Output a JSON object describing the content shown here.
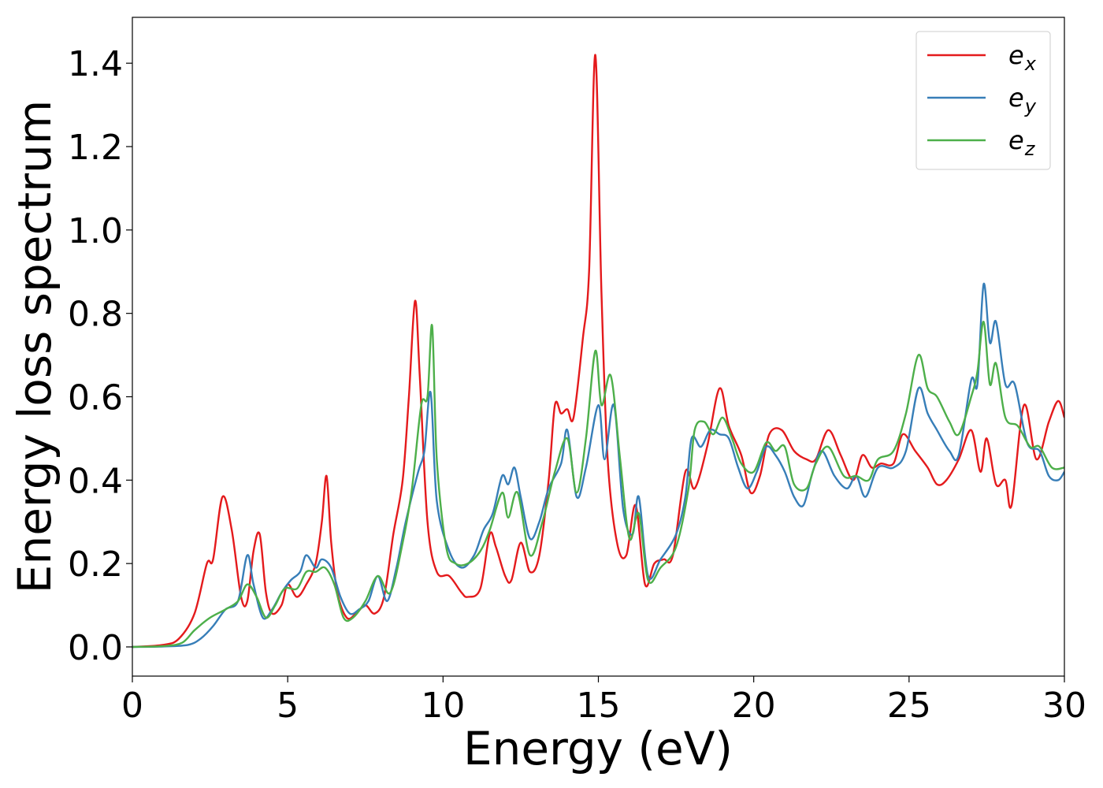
{
  "chart_data": {
    "type": "line",
    "xlabel": "Energy (eV)",
    "ylabel": "Energy loss spectrum",
    "xlim": [
      0,
      30
    ],
    "ylim": [
      -0.07,
      1.51
    ],
    "xticks": [
      "0",
      "5",
      "10",
      "15",
      "20",
      "25",
      "30"
    ],
    "yticks": [
      "0.0",
      "0.2",
      "0.4",
      "0.6",
      "0.8",
      "1.0",
      "1.2",
      "1.4"
    ],
    "grid": false,
    "legend_position": "top-right",
    "series": [
      {
        "name": "e",
        "subscript": "x",
        "color": "#e41a1c",
        "points": [
          [
            0,
            0
          ],
          [
            1,
            0.005
          ],
          [
            1.5,
            0.02
          ],
          [
            2,
            0.08
          ],
          [
            2.4,
            0.2
          ],
          [
            2.6,
            0.21
          ],
          [
            2.9,
            0.36
          ],
          [
            3.2,
            0.28
          ],
          [
            3.5,
            0.12
          ],
          [
            3.7,
            0.11
          ],
          [
            3.9,
            0.23
          ],
          [
            4.1,
            0.27
          ],
          [
            4.3,
            0.13
          ],
          [
            4.5,
            0.08
          ],
          [
            4.8,
            0.1
          ],
          [
            5.0,
            0.15
          ],
          [
            5.3,
            0.12
          ],
          [
            5.6,
            0.15
          ],
          [
            5.9,
            0.2
          ],
          [
            6.1,
            0.3
          ],
          [
            6.25,
            0.41
          ],
          [
            6.4,
            0.25
          ],
          [
            6.6,
            0.13
          ],
          [
            6.9,
            0.07
          ],
          [
            7.2,
            0.08
          ],
          [
            7.5,
            0.1
          ],
          [
            7.8,
            0.08
          ],
          [
            8.1,
            0.12
          ],
          [
            8.4,
            0.27
          ],
          [
            8.7,
            0.4
          ],
          [
            8.9,
            0.6
          ],
          [
            9.1,
            0.83
          ],
          [
            9.25,
            0.65
          ],
          [
            9.5,
            0.3
          ],
          [
            9.8,
            0.18
          ],
          [
            10.2,
            0.17
          ],
          [
            10.6,
            0.13
          ],
          [
            10.8,
            0.12
          ],
          [
            11.2,
            0.14
          ],
          [
            11.5,
            0.27
          ],
          [
            11.7,
            0.24
          ],
          [
            12.0,
            0.17
          ],
          [
            12.2,
            0.16
          ],
          [
            12.5,
            0.25
          ],
          [
            12.8,
            0.18
          ],
          [
            13.1,
            0.22
          ],
          [
            13.4,
            0.4
          ],
          [
            13.6,
            0.58
          ],
          [
            13.8,
            0.56
          ],
          [
            14.0,
            0.57
          ],
          [
            14.2,
            0.55
          ],
          [
            14.5,
            0.74
          ],
          [
            14.7,
            0.9
          ],
          [
            14.9,
            1.42
          ],
          [
            15.1,
            0.85
          ],
          [
            15.3,
            0.45
          ],
          [
            15.6,
            0.25
          ],
          [
            15.9,
            0.22
          ],
          [
            16.2,
            0.34
          ],
          [
            16.5,
            0.15
          ],
          [
            16.8,
            0.2
          ],
          [
            17.1,
            0.21
          ],
          [
            17.4,
            0.22
          ],
          [
            17.8,
            0.42
          ],
          [
            18.1,
            0.38
          ],
          [
            18.5,
            0.48
          ],
          [
            18.9,
            0.62
          ],
          [
            19.2,
            0.53
          ],
          [
            19.6,
            0.46
          ],
          [
            19.9,
            0.37
          ],
          [
            20.2,
            0.41
          ],
          [
            20.5,
            0.51
          ],
          [
            20.9,
            0.52
          ],
          [
            21.3,
            0.47
          ],
          [
            21.7,
            0.45
          ],
          [
            22.0,
            0.45
          ],
          [
            22.4,
            0.52
          ],
          [
            22.8,
            0.46
          ],
          [
            23.2,
            0.4
          ],
          [
            23.5,
            0.46
          ],
          [
            23.8,
            0.43
          ],
          [
            24.1,
            0.44
          ],
          [
            24.5,
            0.44
          ],
          [
            24.8,
            0.51
          ],
          [
            25.2,
            0.47
          ],
          [
            25.6,
            0.43
          ],
          [
            25.9,
            0.39
          ],
          [
            26.2,
            0.4
          ],
          [
            26.6,
            0.45
          ],
          [
            27.0,
            0.52
          ],
          [
            27.3,
            0.42
          ],
          [
            27.5,
            0.5
          ],
          [
            27.8,
            0.39
          ],
          [
            28.1,
            0.4
          ],
          [
            28.3,
            0.34
          ],
          [
            28.7,
            0.58
          ],
          [
            29.1,
            0.45
          ],
          [
            29.5,
            0.54
          ],
          [
            29.8,
            0.59
          ],
          [
            30.0,
            0.55
          ]
        ]
      },
      {
        "name": "e",
        "subscript": "y",
        "color": "#377eb8",
        "points": [
          [
            0,
            0
          ],
          [
            1,
            0.001
          ],
          [
            1.8,
            0.005
          ],
          [
            2.2,
            0.02
          ],
          [
            2.6,
            0.05
          ],
          [
            3.0,
            0.09
          ],
          [
            3.4,
            0.11
          ],
          [
            3.7,
            0.22
          ],
          [
            3.9,
            0.15
          ],
          [
            4.2,
            0.07
          ],
          [
            4.5,
            0.09
          ],
          [
            4.8,
            0.13
          ],
          [
            5.1,
            0.16
          ],
          [
            5.4,
            0.18
          ],
          [
            5.6,
            0.22
          ],
          [
            5.9,
            0.19
          ],
          [
            6.1,
            0.21
          ],
          [
            6.4,
            0.19
          ],
          [
            6.7,
            0.12
          ],
          [
            7.0,
            0.08
          ],
          [
            7.3,
            0.09
          ],
          [
            7.6,
            0.11
          ],
          [
            7.9,
            0.17
          ],
          [
            8.2,
            0.11
          ],
          [
            8.5,
            0.19
          ],
          [
            8.8,
            0.3
          ],
          [
            9.2,
            0.42
          ],
          [
            9.4,
            0.47
          ],
          [
            9.6,
            0.61
          ],
          [
            9.8,
            0.35
          ],
          [
            10.2,
            0.23
          ],
          [
            10.6,
            0.19
          ],
          [
            11.0,
            0.22
          ],
          [
            11.3,
            0.28
          ],
          [
            11.6,
            0.32
          ],
          [
            11.9,
            0.41
          ],
          [
            12.1,
            0.39
          ],
          [
            12.3,
            0.43
          ],
          [
            12.5,
            0.36
          ],
          [
            12.8,
            0.26
          ],
          [
            13.1,
            0.3
          ],
          [
            13.4,
            0.38
          ],
          [
            13.8,
            0.44
          ],
          [
            14.0,
            0.52
          ],
          [
            14.3,
            0.36
          ],
          [
            14.6,
            0.43
          ],
          [
            15.0,
            0.58
          ],
          [
            15.2,
            0.45
          ],
          [
            15.5,
            0.58
          ],
          [
            15.8,
            0.33
          ],
          [
            16.1,
            0.27
          ],
          [
            16.3,
            0.36
          ],
          [
            16.6,
            0.17
          ],
          [
            17.0,
            0.21
          ],
          [
            17.5,
            0.27
          ],
          [
            17.8,
            0.36
          ],
          [
            18.0,
            0.5
          ],
          [
            18.3,
            0.48
          ],
          [
            18.6,
            0.52
          ],
          [
            18.9,
            0.51
          ],
          [
            19.2,
            0.5
          ],
          [
            19.5,
            0.43
          ],
          [
            19.8,
            0.38
          ],
          [
            20.1,
            0.42
          ],
          [
            20.4,
            0.48
          ],
          [
            20.7,
            0.46
          ],
          [
            21.0,
            0.42
          ],
          [
            21.3,
            0.36
          ],
          [
            21.6,
            0.34
          ],
          [
            21.9,
            0.42
          ],
          [
            22.2,
            0.47
          ],
          [
            22.6,
            0.41
          ],
          [
            23.0,
            0.38
          ],
          [
            23.3,
            0.41
          ],
          [
            23.6,
            0.36
          ],
          [
            24.0,
            0.43
          ],
          [
            24.5,
            0.43
          ],
          [
            24.9,
            0.47
          ],
          [
            25.3,
            0.62
          ],
          [
            25.6,
            0.56
          ],
          [
            25.9,
            0.52
          ],
          [
            26.3,
            0.47
          ],
          [
            26.6,
            0.46
          ],
          [
            27.0,
            0.64
          ],
          [
            27.2,
            0.63
          ],
          [
            27.4,
            0.87
          ],
          [
            27.6,
            0.73
          ],
          [
            27.8,
            0.78
          ],
          [
            28.1,
            0.63
          ],
          [
            28.4,
            0.63
          ],
          [
            28.8,
            0.49
          ],
          [
            29.2,
            0.47
          ],
          [
            29.5,
            0.41
          ],
          [
            29.8,
            0.4
          ],
          [
            30.0,
            0.42
          ]
        ]
      },
      {
        "name": "e",
        "subscript": "z",
        "color": "#4daf4a",
        "points": [
          [
            0,
            0
          ],
          [
            1,
            0.002
          ],
          [
            1.6,
            0.01
          ],
          [
            2.0,
            0.04
          ],
          [
            2.5,
            0.07
          ],
          [
            3.0,
            0.09
          ],
          [
            3.4,
            0.11
          ],
          [
            3.7,
            0.15
          ],
          [
            4.0,
            0.12
          ],
          [
            4.3,
            0.07
          ],
          [
            4.6,
            0.1
          ],
          [
            4.9,
            0.14
          ],
          [
            5.3,
            0.14
          ],
          [
            5.6,
            0.18
          ],
          [
            5.9,
            0.18
          ],
          [
            6.2,
            0.19
          ],
          [
            6.5,
            0.15
          ],
          [
            6.8,
            0.07
          ],
          [
            7.1,
            0.07
          ],
          [
            7.5,
            0.11
          ],
          [
            7.9,
            0.17
          ],
          [
            8.3,
            0.13
          ],
          [
            8.7,
            0.25
          ],
          [
            9.0,
            0.38
          ],
          [
            9.3,
            0.58
          ],
          [
            9.5,
            0.6
          ],
          [
            9.65,
            0.77
          ],
          [
            9.8,
            0.45
          ],
          [
            10.1,
            0.24
          ],
          [
            10.4,
            0.2
          ],
          [
            10.8,
            0.2
          ],
          [
            11.2,
            0.23
          ],
          [
            11.5,
            0.28
          ],
          [
            11.9,
            0.37
          ],
          [
            12.1,
            0.31
          ],
          [
            12.4,
            0.37
          ],
          [
            12.8,
            0.22
          ],
          [
            13.2,
            0.3
          ],
          [
            13.6,
            0.42
          ],
          [
            14.0,
            0.5
          ],
          [
            14.3,
            0.37
          ],
          [
            14.6,
            0.5
          ],
          [
            14.9,
            0.71
          ],
          [
            15.1,
            0.58
          ],
          [
            15.4,
            0.65
          ],
          [
            15.7,
            0.45
          ],
          [
            16.0,
            0.26
          ],
          [
            16.3,
            0.32
          ],
          [
            16.6,
            0.16
          ],
          [
            17.0,
            0.19
          ],
          [
            17.5,
            0.24
          ],
          [
            17.9,
            0.38
          ],
          [
            18.1,
            0.52
          ],
          [
            18.4,
            0.54
          ],
          [
            18.7,
            0.51
          ],
          [
            19.0,
            0.55
          ],
          [
            19.3,
            0.5
          ],
          [
            19.6,
            0.44
          ],
          [
            20.0,
            0.42
          ],
          [
            20.4,
            0.49
          ],
          [
            20.7,
            0.47
          ],
          [
            21.0,
            0.48
          ],
          [
            21.3,
            0.39
          ],
          [
            21.7,
            0.38
          ],
          [
            22.0,
            0.44
          ],
          [
            22.4,
            0.48
          ],
          [
            22.9,
            0.41
          ],
          [
            23.3,
            0.41
          ],
          [
            23.7,
            0.4
          ],
          [
            24.0,
            0.45
          ],
          [
            24.5,
            0.47
          ],
          [
            24.9,
            0.56
          ],
          [
            25.3,
            0.7
          ],
          [
            25.6,
            0.62
          ],
          [
            25.9,
            0.6
          ],
          [
            26.3,
            0.54
          ],
          [
            26.6,
            0.51
          ],
          [
            27.0,
            0.6
          ],
          [
            27.2,
            0.66
          ],
          [
            27.4,
            0.78
          ],
          [
            27.6,
            0.63
          ],
          [
            27.8,
            0.68
          ],
          [
            28.1,
            0.55
          ],
          [
            28.5,
            0.53
          ],
          [
            28.9,
            0.48
          ],
          [
            29.2,
            0.48
          ],
          [
            29.6,
            0.43
          ],
          [
            30.0,
            0.43
          ]
        ]
      }
    ]
  }
}
